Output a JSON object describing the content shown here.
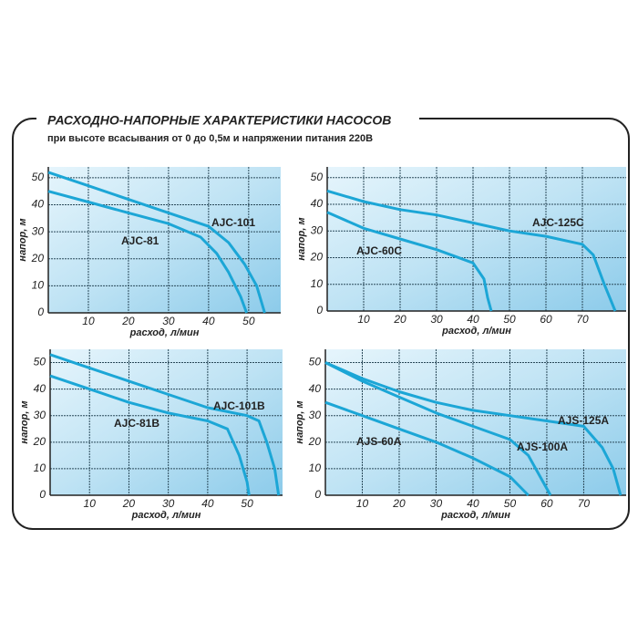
{
  "title": "РАСХОДНО-НАПОРНЫЕ ХАРАКТЕРИСТИКИ НАСОСОВ",
  "subtitle": "при высоте всасывания от 0 до 0,5м и напряжении питания 220В",
  "chart_data": [
    {
      "type": "line",
      "xlabel": "расход, л/мин",
      "ylabel": "напор, м",
      "xlim": [
        0,
        58
      ],
      "ylim": [
        0,
        54
      ],
      "xticks": [
        10,
        20,
        30,
        40,
        50
      ],
      "yticks": [
        0,
        10,
        20,
        30,
        40,
        50
      ],
      "grid": true,
      "series": [
        {
          "name": "AJC-81",
          "color": "#1ca6d6",
          "x": [
            0,
            10,
            20,
            30,
            38,
            42,
            45,
            48,
            49.5
          ],
          "values": [
            45,
            41,
            37,
            33,
            28,
            22,
            15,
            6,
            0
          ]
        },
        {
          "name": "AJC-101",
          "color": "#1ca6d6",
          "x": [
            0,
            10,
            20,
            30,
            40,
            45,
            49,
            52,
            54
          ],
          "values": [
            52,
            47,
            42,
            37,
            32,
            26,
            18,
            10,
            0
          ]
        }
      ]
    },
    {
      "type": "line",
      "xlabel": "расход, л/мин",
      "ylabel": "напор, м",
      "xlim": [
        0,
        82
      ],
      "ylim": [
        0,
        54
      ],
      "xticks": [
        10,
        20,
        30,
        40,
        50,
        60,
        70
      ],
      "yticks": [
        0,
        10,
        20,
        30,
        40,
        50
      ],
      "grid": true,
      "series": [
        {
          "name": "AJC-60C",
          "color": "#1ca6d6",
          "x": [
            0,
            10,
            20,
            30,
            40,
            43,
            44,
            45
          ],
          "values": [
            37,
            31,
            27,
            23,
            18,
            12,
            5,
            0
          ]
        },
        {
          "name": "AJC-125C",
          "color": "#1ca6d6",
          "x": [
            0,
            10,
            20,
            30,
            40,
            50,
            60,
            70,
            73,
            76,
            79
          ],
          "values": [
            45,
            41,
            38,
            36,
            33,
            30,
            28,
            25,
            21,
            10,
            0
          ]
        }
      ]
    },
    {
      "type": "line",
      "xlabel": "расход, л/мин",
      "ylabel": "напор, м",
      "xlim": [
        0,
        59
      ],
      "ylim": [
        0,
        55
      ],
      "xticks": [
        10,
        20,
        30,
        40,
        50
      ],
      "yticks": [
        0,
        10,
        20,
        30,
        40,
        50
      ],
      "grid": true,
      "series": [
        {
          "name": "AJC-81B",
          "color": "#1ca6d6",
          "x": [
            0,
            10,
            20,
            30,
            40,
            45,
            48,
            50,
            50.5
          ],
          "values": [
            45,
            40,
            35,
            31,
            28,
            25,
            15,
            5,
            0
          ]
        },
        {
          "name": "AJC-101B",
          "color": "#1ca6d6",
          "x": [
            0,
            10,
            20,
            30,
            40,
            50,
            53,
            55,
            57,
            58
          ],
          "values": [
            53,
            48,
            43,
            38,
            33,
            30,
            28,
            20,
            10,
            0
          ]
        }
      ]
    },
    {
      "type": "line",
      "xlabel": "расход, л/мин",
      "ylabel": "напор, м",
      "xlim": [
        0,
        81.5
      ],
      "ylim": [
        0,
        55
      ],
      "xticks": [
        10,
        20,
        30,
        40,
        50,
        60,
        70
      ],
      "yticks": [
        0,
        10,
        20,
        30,
        40,
        50
      ],
      "grid": true,
      "series": [
        {
          "name": "AJS-60A",
          "color": "#1ca6d6",
          "x": [
            0,
            10,
            20,
            30,
            40,
            50,
            55
          ],
          "values": [
            35,
            30,
            25,
            20,
            14,
            7,
            0
          ]
        },
        {
          "name": "AJS-100A",
          "color": "#1ca6d6",
          "x": [
            0,
            10,
            20,
            30,
            40,
            50,
            55,
            59,
            61
          ],
          "values": [
            50,
            43,
            37,
            31,
            26,
            21,
            15,
            5,
            0
          ]
        },
        {
          "name": "AJS-125A",
          "color": "#1ca6d6",
          "x": [
            0,
            10,
            20,
            30,
            40,
            50,
            60,
            70,
            75,
            78,
            80
          ],
          "values": [
            50,
            44,
            39,
            35,
            32,
            30,
            28,
            26,
            18,
            10,
            0
          ]
        }
      ]
    }
  ]
}
